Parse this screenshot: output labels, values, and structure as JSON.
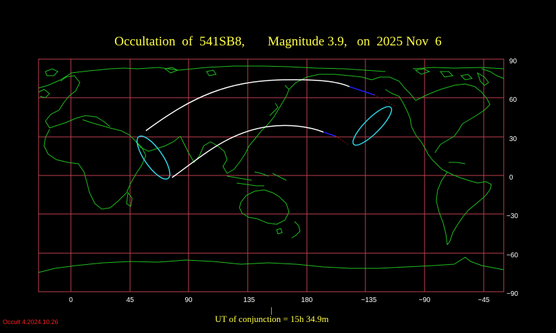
{
  "title": "Occultation  of  541SB8,       Magnitude 3.9,   on  2025 Nov  6",
  "longitude_ticks": [
    "0",
    "45",
    "90",
    "135",
    "180",
    "−135",
    "−90",
    "−45"
  ],
  "latitude_ticks": [
    "90",
    "60",
    "30",
    "0",
    "−30",
    "−60",
    "−90"
  ],
  "footer_marker": "|",
  "footer": "UT of conjunction = 15h 34.9m",
  "version": "Occult 4.2024.10.26",
  "colors": {
    "background": "#000000",
    "grid": "#c04050",
    "coastline": "#20c020",
    "path": "#ffffff",
    "path_daylight": "#2020ff",
    "path_dotted": "#ff2020",
    "ellipse": "#30d8e8",
    "title": "#ffff44"
  }
}
